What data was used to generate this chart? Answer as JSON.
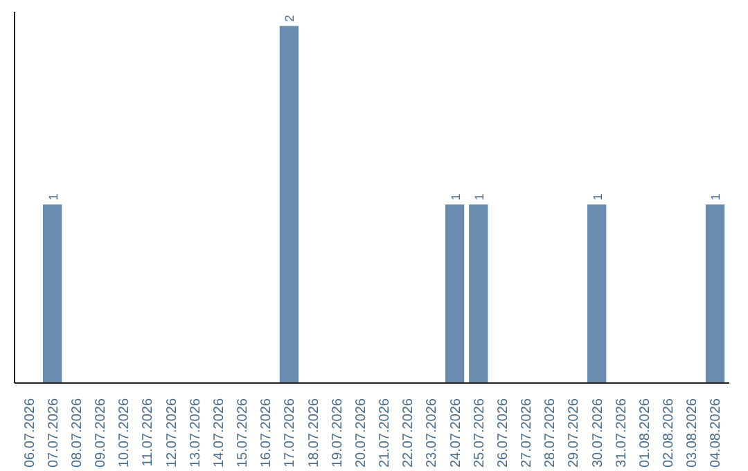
{
  "chart_data": {
    "type": "bar",
    "categories": [
      "06.07.2026",
      "07.07.2026",
      "08.07.2026",
      "09.07.2026",
      "10.07.2026",
      "11.07.2026",
      "12.07.2026",
      "13.07.2026",
      "14.07.2026",
      "15.07.2026",
      "16.07.2026",
      "17.07.2026",
      "18.07.2026",
      "19.07.2026",
      "20.07.2026",
      "21.07.2026",
      "22.07.2026",
      "23.07.2026",
      "24.07.2026",
      "25.07.2026",
      "26.07.2026",
      "27.07.2026",
      "28.07.2026",
      "29.07.2026",
      "30.07.2026",
      "31.07.2026",
      "01.08.2026",
      "02.08.2026",
      "03.08.2026",
      "04.08.2026"
    ],
    "values": [
      0,
      1,
      0,
      0,
      0,
      0,
      0,
      0,
      0,
      0,
      0,
      2,
      0,
      0,
      0,
      0,
      0,
      0,
      1,
      1,
      0,
      0,
      0,
      0,
      1,
      0,
      0,
      0,
      0,
      1
    ],
    "value_labels": [
      null,
      "1",
      null,
      null,
      null,
      null,
      null,
      null,
      null,
      null,
      null,
      "2",
      null,
      null,
      null,
      null,
      null,
      null,
      "1",
      "1",
      null,
      null,
      null,
      null,
      "1",
      null,
      null,
      null,
      null,
      "1"
    ],
    "color": "#6a8caf",
    "data_labels": false,
    "tick_labels": "x",
    "grid": false
  }
}
